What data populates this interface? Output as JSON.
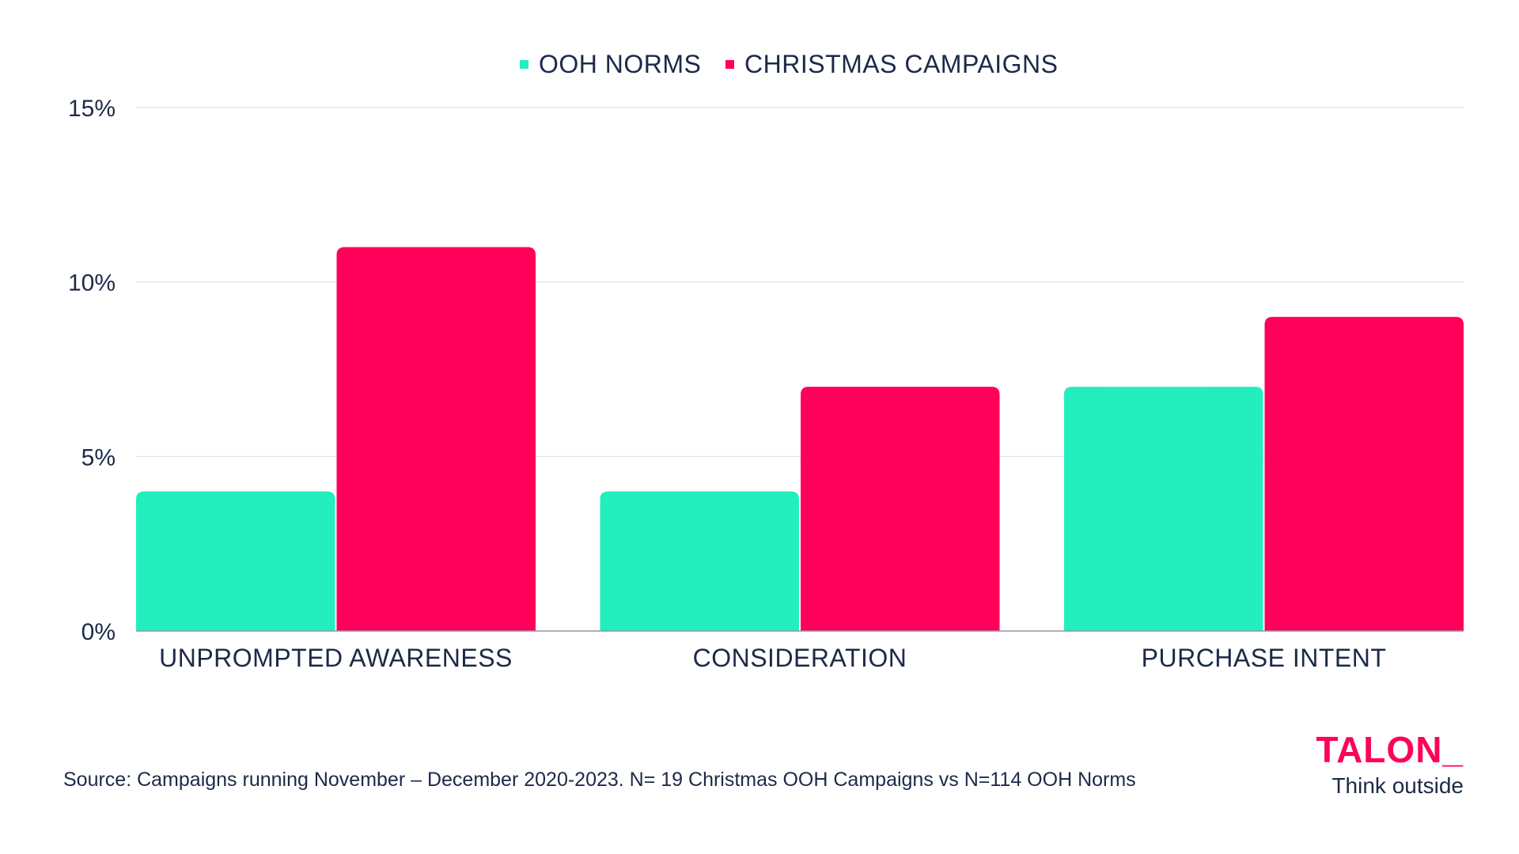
{
  "chart_data": {
    "type": "bar",
    "categories": [
      "UNPROMPTED AWARENESS",
      "CONSIDERATION",
      "PURCHASE INTENT"
    ],
    "series": [
      {
        "name": "OOH NORMS",
        "color": "#22eebe",
        "values": [
          4,
          4,
          7
        ]
      },
      {
        "name": "CHRISTMAS CAMPAIGNS",
        "color": "#ff005a",
        "values": [
          11,
          7,
          9
        ]
      }
    ],
    "ylim": [
      0,
      15
    ],
    "yticks": [
      0,
      5,
      10,
      15
    ],
    "ytick_labels": [
      "0%",
      "5%",
      "10%",
      "15%"
    ],
    "grid": true,
    "legend_position": "top-center",
    "title": "",
    "xlabel": "",
    "ylabel": ""
  },
  "source": "Source: Campaigns running November – December 2020-2023. N= 19 Christmas OOH Campaigns vs N=114 OOH Norms",
  "brand": {
    "logo_text": "TALON_",
    "tagline": "Think outside",
    "color": "#ff005a"
  }
}
